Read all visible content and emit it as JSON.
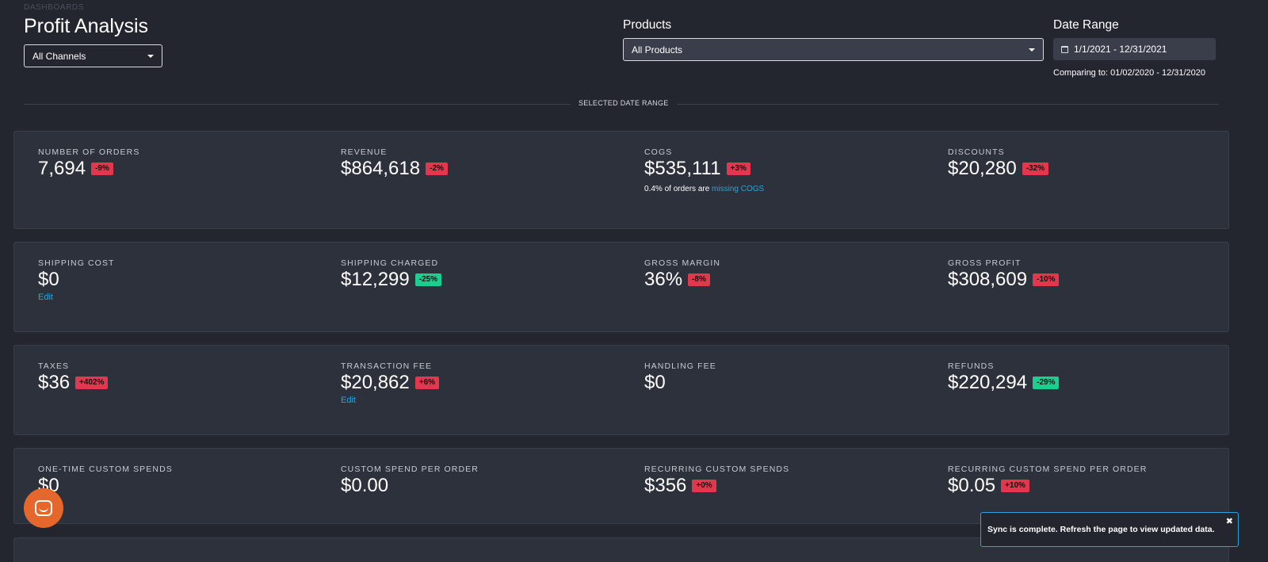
{
  "header": {
    "breadcrumb": "DASHBOARDS",
    "title": "Profit Analysis",
    "channel_select": "All Channels",
    "products_label": "Products",
    "products_select": "All Products",
    "date_label": "Date Range",
    "date_value": "1/1/2021 - 12/31/2021",
    "comparing": "Comparing to: 01/02/2020 - 12/31/2020"
  },
  "divider_label": "SELECTED DATE RANGE",
  "colors": {
    "accent": "#2aa3d9",
    "negative": "#e2384d",
    "positive": "#1dcf8e",
    "chat": "#e5672c"
  },
  "cards": [
    {
      "metrics": [
        {
          "label": "NUMBER OF ORDERS",
          "value": "7,694",
          "change": "-9%",
          "tone": "red"
        },
        {
          "label": "REVENUE",
          "value": "$864,618",
          "change": "-2%",
          "tone": "red"
        },
        {
          "label": "COGS",
          "value": "$535,111",
          "change": "+3%",
          "tone": "red",
          "note_prefix": "0.4% of orders are ",
          "note_link": "missing COGS"
        },
        {
          "label": "DISCOUNTS",
          "value": "$20,280",
          "change": "-32%",
          "tone": "red"
        }
      ]
    },
    {
      "metrics": [
        {
          "label": "SHIPPING COST",
          "value": "$0",
          "link": "Edit"
        },
        {
          "label": "SHIPPING CHARGED",
          "value": "$12,299",
          "change": "-25%",
          "tone": "green"
        },
        {
          "label": "GROSS MARGIN",
          "value": "36%",
          "change": "-8%",
          "tone": "red"
        },
        {
          "label": "GROSS PROFIT",
          "value": "$308,609",
          "change": "-10%",
          "tone": "red"
        }
      ]
    },
    {
      "metrics": [
        {
          "label": "TAXES",
          "value": "$36",
          "change": "+402%",
          "tone": "red"
        },
        {
          "label": "TRANSACTION FEE",
          "value": "$20,862",
          "change": "+6%",
          "tone": "red",
          "link": "Edit"
        },
        {
          "label": "HANDLING FEE",
          "value": "$0"
        },
        {
          "label": "REFUNDS",
          "value": "$220,294",
          "change": "-29%",
          "tone": "green"
        }
      ]
    },
    {
      "metrics": [
        {
          "label": "ONE-TIME CUSTOM SPENDS",
          "value": "$0"
        },
        {
          "label": "CUSTOM SPEND PER ORDER",
          "value": "$0.00"
        },
        {
          "label": "RECURRING CUSTOM SPENDS",
          "value": "$356",
          "change": "+0%",
          "tone": "red"
        },
        {
          "label": "RECURRING CUSTOM SPEND PER ORDER",
          "value": "$0.05",
          "change": "+10%",
          "tone": "red"
        }
      ]
    }
  ],
  "toast": {
    "message": "Sync is complete. Refresh the page to view updated data.",
    "close": "✖"
  },
  "chat": {
    "icon": "chat-icon"
  }
}
